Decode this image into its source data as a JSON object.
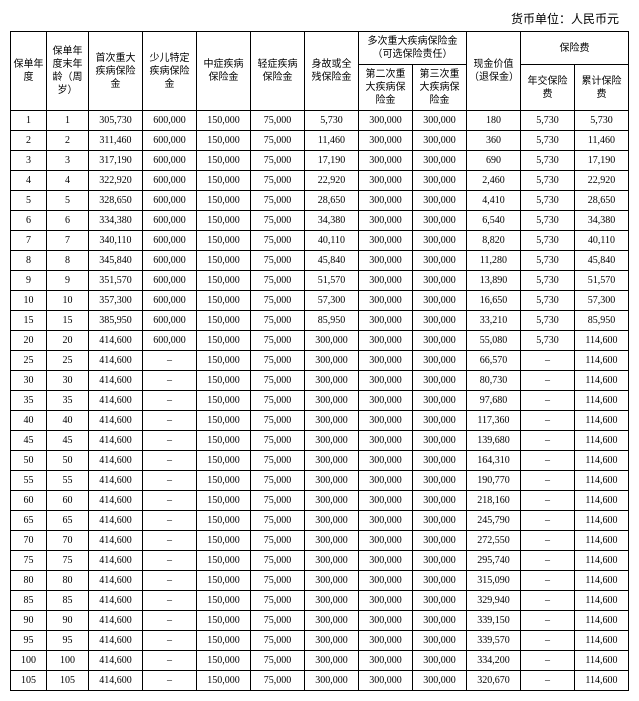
{
  "unit_label": "货币单位：人民币元",
  "headers": {
    "col1": "保单年度",
    "col2": "保单年度末年龄（周岁）",
    "col3": "首次重大疾病保险金",
    "col4": "少儿特定疾病保险金",
    "col5": "中症疾病保险金",
    "col6": "轻症疾病保险金",
    "col7": "身故或全残保险金",
    "group1": "多次重大疾病保险金（可选保险责任）",
    "col8": "第二次重大疾病保险金",
    "col9": "第三次重大疾病保险金",
    "col10": "现金价值（退保金）",
    "group2": "保险费",
    "col11": "年交保险费",
    "col12": "累计保险费"
  },
  "rows": [
    [
      "1",
      "1",
      "305,730",
      "600,000",
      "150,000",
      "75,000",
      "5,730",
      "300,000",
      "300,000",
      "180",
      "5,730",
      "5,730"
    ],
    [
      "2",
      "2",
      "311,460",
      "600,000",
      "150,000",
      "75,000",
      "11,460",
      "300,000",
      "300,000",
      "360",
      "5,730",
      "11,460"
    ],
    [
      "3",
      "3",
      "317,190",
      "600,000",
      "150,000",
      "75,000",
      "17,190",
      "300,000",
      "300,000",
      "690",
      "5,730",
      "17,190"
    ],
    [
      "4",
      "4",
      "322,920",
      "600,000",
      "150,000",
      "75,000",
      "22,920",
      "300,000",
      "300,000",
      "2,460",
      "5,730",
      "22,920"
    ],
    [
      "5",
      "5",
      "328,650",
      "600,000",
      "150,000",
      "75,000",
      "28,650",
      "300,000",
      "300,000",
      "4,410",
      "5,730",
      "28,650"
    ],
    [
      "6",
      "6",
      "334,380",
      "600,000",
      "150,000",
      "75,000",
      "34,380",
      "300,000",
      "300,000",
      "6,540",
      "5,730",
      "34,380"
    ],
    [
      "7",
      "7",
      "340,110",
      "600,000",
      "150,000",
      "75,000",
      "40,110",
      "300,000",
      "300,000",
      "8,820",
      "5,730",
      "40,110"
    ],
    [
      "8",
      "8",
      "345,840",
      "600,000",
      "150,000",
      "75,000",
      "45,840",
      "300,000",
      "300,000",
      "11,280",
      "5,730",
      "45,840"
    ],
    [
      "9",
      "9",
      "351,570",
      "600,000",
      "150,000",
      "75,000",
      "51,570",
      "300,000",
      "300,000",
      "13,890",
      "5,730",
      "51,570"
    ],
    [
      "10",
      "10",
      "357,300",
      "600,000",
      "150,000",
      "75,000",
      "57,300",
      "300,000",
      "300,000",
      "16,650",
      "5,730",
      "57,300"
    ],
    [
      "15",
      "15",
      "385,950",
      "600,000",
      "150,000",
      "75,000",
      "85,950",
      "300,000",
      "300,000",
      "33,210",
      "5,730",
      "85,950"
    ],
    [
      "20",
      "20",
      "414,600",
      "600,000",
      "150,000",
      "75,000",
      "300,000",
      "300,000",
      "300,000",
      "55,080",
      "5,730",
      "114,600"
    ],
    [
      "25",
      "25",
      "414,600",
      "–",
      "150,000",
      "75,000",
      "300,000",
      "300,000",
      "300,000",
      "66,570",
      "–",
      "114,600"
    ],
    [
      "30",
      "30",
      "414,600",
      "–",
      "150,000",
      "75,000",
      "300,000",
      "300,000",
      "300,000",
      "80,730",
      "–",
      "114,600"
    ],
    [
      "35",
      "35",
      "414,600",
      "–",
      "150,000",
      "75,000",
      "300,000",
      "300,000",
      "300,000",
      "97,680",
      "–",
      "114,600"
    ],
    [
      "40",
      "40",
      "414,600",
      "–",
      "150,000",
      "75,000",
      "300,000",
      "300,000",
      "300,000",
      "117,360",
      "–",
      "114,600"
    ],
    [
      "45",
      "45",
      "414,600",
      "–",
      "150,000",
      "75,000",
      "300,000",
      "300,000",
      "300,000",
      "139,680",
      "–",
      "114,600"
    ],
    [
      "50",
      "50",
      "414,600",
      "–",
      "150,000",
      "75,000",
      "300,000",
      "300,000",
      "300,000",
      "164,310",
      "–",
      "114,600"
    ],
    [
      "55",
      "55",
      "414,600",
      "–",
      "150,000",
      "75,000",
      "300,000",
      "300,000",
      "300,000",
      "190,770",
      "–",
      "114,600"
    ],
    [
      "60",
      "60",
      "414,600",
      "–",
      "150,000",
      "75,000",
      "300,000",
      "300,000",
      "300,000",
      "218,160",
      "–",
      "114,600"
    ],
    [
      "65",
      "65",
      "414,600",
      "–",
      "150,000",
      "75,000",
      "300,000",
      "300,000",
      "300,000",
      "245,790",
      "–",
      "114,600"
    ],
    [
      "70",
      "70",
      "414,600",
      "–",
      "150,000",
      "75,000",
      "300,000",
      "300,000",
      "300,000",
      "272,550",
      "–",
      "114,600"
    ],
    [
      "75",
      "75",
      "414,600",
      "–",
      "150,000",
      "75,000",
      "300,000",
      "300,000",
      "300,000",
      "295,740",
      "–",
      "114,600"
    ],
    [
      "80",
      "80",
      "414,600",
      "–",
      "150,000",
      "75,000",
      "300,000",
      "300,000",
      "300,000",
      "315,090",
      "–",
      "114,600"
    ],
    [
      "85",
      "85",
      "414,600",
      "–",
      "150,000",
      "75,000",
      "300,000",
      "300,000",
      "300,000",
      "329,940",
      "–",
      "114,600"
    ],
    [
      "90",
      "90",
      "414,600",
      "–",
      "150,000",
      "75,000",
      "300,000",
      "300,000",
      "300,000",
      "339,150",
      "–",
      "114,600"
    ],
    [
      "95",
      "95",
      "414,600",
      "–",
      "150,000",
      "75,000",
      "300,000",
      "300,000",
      "300,000",
      "339,570",
      "–",
      "114,600"
    ],
    [
      "100",
      "100",
      "414,600",
      "–",
      "150,000",
      "75,000",
      "300,000",
      "300,000",
      "300,000",
      "334,200",
      "–",
      "114,600"
    ],
    [
      "105",
      "105",
      "414,600",
      "–",
      "150,000",
      "75,000",
      "300,000",
      "300,000",
      "300,000",
      "320,670",
      "–",
      "114,600"
    ]
  ]
}
